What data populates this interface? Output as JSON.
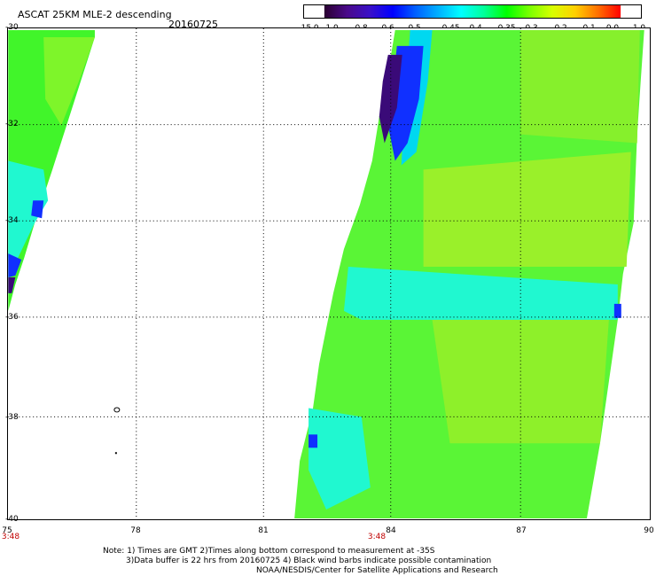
{
  "title": "ASCAT 25KM MLE-2 descending",
  "date": "20160725",
  "colorbar": {
    "labels": [
      "-15.0",
      "-1.0",
      "-0.8",
      "-0.6",
      "-0.5",
      "-0.45",
      "-0.4",
      "-0.35",
      "-0.3",
      "-0.2",
      "-0.1",
      "0.0",
      "1.0"
    ],
    "colors": [
      "#2a0030",
      "#4a0a8a",
      "#3a10c8",
      "#0000ff",
      "#0060ff",
      "#00b0ff",
      "#00ffff",
      "#00ff9a",
      "#00ff00",
      "#7aff00",
      "#d8ff00",
      "#ffd000",
      "#ff7000",
      "#ff0000"
    ]
  },
  "axes": {
    "lat_labels": [
      "-30",
      "-32",
      "-34",
      "-36",
      "-38",
      "-40"
    ],
    "lon_labels": [
      "75",
      "78",
      "81",
      "84",
      "87",
      "90"
    ],
    "time_labels": [
      "3:48",
      "3:48"
    ]
  },
  "swaths": {
    "west_color": "#41f52a",
    "east_color": "#5af536",
    "light_color": "#9af02a",
    "cyan_color": "#20f8d0",
    "blue_color": "#1030ff",
    "purple_color": "#3a0a78"
  },
  "notes": {
    "line1": "Note: 1) Times are GMT 2)Times along bottom correspond to measurement at -35S",
    "line2": "3)Data buffer is 22 hrs from 20160725 4) Black wind barbs indicate possible contamination",
    "line3": "NOAA/NESDIS/Center for Satellite Applications and Research"
  }
}
